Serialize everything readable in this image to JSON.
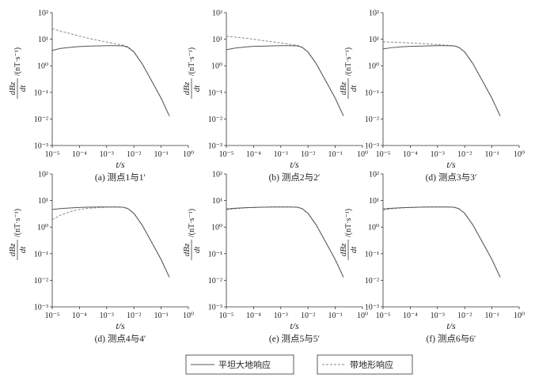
{
  "legend": {
    "solid_label": "平坦大地响应",
    "dashed_label": "带地形响应"
  },
  "styles": {
    "solid_color": "#555555",
    "dashed_color": "#888888"
  },
  "chart_data": [
    {
      "type": "line",
      "caption": "(a) 测点1与1′",
      "xlabel": "t/s",
      "ylabel_numerator": "dBz",
      "ylabel_denominator": "dt",
      "ylabel_unit": "/(nT·s⁻¹)",
      "xscale": "log",
      "yscale": "log",
      "xlim": [
        1e-05,
        1
      ],
      "ylim": [
        0.001,
        100
      ],
      "x_ticks": [
        "10⁻⁵",
        "10⁻⁴",
        "10⁻³",
        "10⁻²",
        "10⁻¹",
        "10⁰"
      ],
      "y_ticks": [
        "10⁻³",
        "10⁻²",
        "10⁻¹",
        "10⁰",
        "10¹",
        "10²"
      ],
      "series": [
        {
          "name": "平坦大地响应",
          "style": "solid",
          "x": [
            1e-05,
            2e-05,
            5e-05,
            0.0001,
            0.0002,
            0.0005,
            0.001,
            0.002,
            0.004,
            0.006,
            0.01,
            0.02,
            0.05,
            0.1,
            0.2
          ],
          "y": [
            3.8,
            4.5,
            5.0,
            5.3,
            5.5,
            5.6,
            5.7,
            5.7,
            5.6,
            5.0,
            3.3,
            1.2,
            0.22,
            0.06,
            0.013
          ]
        },
        {
          "name": "带地形响应",
          "style": "dashed",
          "x": [
            1e-05,
            2e-05,
            5e-05,
            0.0001,
            0.0002,
            0.0005,
            0.001,
            0.002,
            0.004,
            0.006,
            0.01,
            0.02,
            0.05,
            0.1,
            0.2
          ],
          "y": [
            25,
            20,
            16,
            13,
            11,
            9,
            7.8,
            6.8,
            6.0,
            5.2,
            3.4,
            1.2,
            0.22,
            0.06,
            0.013
          ]
        }
      ]
    },
    {
      "type": "line",
      "caption": "(b) 测点2与2′",
      "xlabel": "t/s",
      "ylabel_numerator": "dBz",
      "ylabel_denominator": "dt",
      "ylabel_unit": "/(nT·s⁻¹)",
      "xscale": "log",
      "yscale": "log",
      "xlim": [
        1e-05,
        1
      ],
      "ylim": [
        0.001,
        100
      ],
      "x_ticks": [
        "10⁻⁵",
        "10⁻⁴",
        "10⁻³",
        "10⁻²",
        "10⁻¹",
        "10⁰"
      ],
      "y_ticks": [
        "10⁻³",
        "10⁻²",
        "10⁻¹",
        "10⁰",
        "10¹",
        "10²"
      ],
      "series": [
        {
          "name": "平坦大地响应",
          "style": "solid",
          "x": [
            1e-05,
            2e-05,
            5e-05,
            0.0001,
            0.0002,
            0.0005,
            0.001,
            0.002,
            0.004,
            0.006,
            0.01,
            0.02,
            0.05,
            0.1,
            0.2
          ],
          "y": [
            4.0,
            4.6,
            5.1,
            5.4,
            5.5,
            5.6,
            5.7,
            5.7,
            5.6,
            5.0,
            3.3,
            1.2,
            0.22,
            0.06,
            0.013
          ]
        },
        {
          "name": "带地形响应",
          "style": "dashed",
          "x": [
            1e-05,
            2e-05,
            5e-05,
            0.0001,
            0.0002,
            0.0005,
            0.001,
            0.002,
            0.004,
            0.006,
            0.01,
            0.02,
            0.05,
            0.1,
            0.2
          ],
          "y": [
            13,
            12,
            11,
            10,
            9,
            8,
            7.2,
            6.5,
            5.9,
            5.1,
            3.3,
            1.2,
            0.22,
            0.06,
            0.013
          ]
        }
      ]
    },
    {
      "type": "line",
      "caption": "(d) 测点3与3′",
      "xlabel": "t/s",
      "ylabel_numerator": "dBz",
      "ylabel_denominator": "dt",
      "ylabel_unit": "/(nT·s⁻¹)",
      "xscale": "log",
      "yscale": "log",
      "xlim": [
        1e-05,
        1
      ],
      "ylim": [
        0.001,
        100
      ],
      "x_ticks": [
        "10⁻⁵",
        "10⁻⁴",
        "10⁻³",
        "10⁻²",
        "10⁻¹",
        "10⁰"
      ],
      "y_ticks": [
        "10⁻³",
        "10⁻²",
        "10⁻¹",
        "10⁰",
        "10¹",
        "10²"
      ],
      "series": [
        {
          "name": "平坦大地响应",
          "style": "solid",
          "x": [
            1e-05,
            2e-05,
            5e-05,
            0.0001,
            0.0002,
            0.0005,
            0.001,
            0.002,
            0.004,
            0.006,
            0.01,
            0.02,
            0.05,
            0.1,
            0.2
          ],
          "y": [
            4.3,
            4.8,
            5.2,
            5.4,
            5.5,
            5.6,
            5.7,
            5.7,
            5.6,
            5.0,
            3.3,
            1.2,
            0.22,
            0.06,
            0.013
          ]
        },
        {
          "name": "带地形响应",
          "style": "dashed",
          "x": [
            1e-05,
            2e-05,
            5e-05,
            0.0001,
            0.0002,
            0.0005,
            0.001,
            0.002,
            0.004,
            0.006,
            0.01,
            0.02,
            0.05,
            0.1,
            0.2
          ],
          "y": [
            8.0,
            7.8,
            7.5,
            7.2,
            7.0,
            6.6,
            6.3,
            6.0,
            5.7,
            5.0,
            3.3,
            1.2,
            0.22,
            0.06,
            0.013
          ]
        }
      ]
    },
    {
      "type": "line",
      "caption": "(d) 测点4与4′",
      "xlabel": "t/s",
      "ylabel_numerator": "dBz",
      "ylabel_denominator": "dt",
      "ylabel_unit": "/(nT·s⁻¹)",
      "xscale": "log",
      "yscale": "log",
      "xlim": [
        1e-05,
        1
      ],
      "ylim": [
        0.001,
        100
      ],
      "x_ticks": [
        "10⁻⁵",
        "10⁻⁴",
        "10⁻³",
        "10⁻²",
        "10⁻¹",
        "10⁰"
      ],
      "y_ticks": [
        "10⁻³",
        "10⁻²",
        "10⁻¹",
        "10⁰",
        "10¹",
        "10²"
      ],
      "series": [
        {
          "name": "平坦大地响应",
          "style": "solid",
          "x": [
            1e-05,
            2e-05,
            5e-05,
            0.0001,
            0.0002,
            0.0005,
            0.001,
            0.002,
            0.004,
            0.006,
            0.01,
            0.02,
            0.05,
            0.1,
            0.2
          ],
          "y": [
            4.6,
            5.0,
            5.3,
            5.5,
            5.6,
            5.7,
            5.7,
            5.7,
            5.6,
            5.0,
            3.3,
            1.2,
            0.22,
            0.06,
            0.013
          ]
        },
        {
          "name": "带地形响应",
          "style": "dashed",
          "x": [
            1e-05,
            2e-05,
            5e-05,
            0.0001,
            0.0002,
            0.0005,
            0.001,
            0.002,
            0.004,
            0.006,
            0.01,
            0.02,
            0.05,
            0.1,
            0.2
          ],
          "y": [
            1.9,
            2.8,
            3.9,
            4.6,
            5.1,
            5.4,
            5.6,
            5.7,
            5.6,
            5.0,
            3.3,
            1.2,
            0.22,
            0.06,
            0.013
          ]
        }
      ]
    },
    {
      "type": "line",
      "caption": "(e) 测点5与5′",
      "xlabel": "t/s",
      "ylabel_numerator": "dBz",
      "ylabel_denominator": "dt",
      "ylabel_unit": "/(nT·s⁻¹)",
      "xscale": "log",
      "yscale": "log",
      "xlim": [
        1e-05,
        1
      ],
      "ylim": [
        0.001,
        100
      ],
      "x_ticks": [
        "10⁻⁵",
        "10⁻⁴",
        "10⁻³",
        "10⁻²",
        "10⁻¹",
        "10⁰"
      ],
      "y_ticks": [
        "10⁻³",
        "10⁻²",
        "10⁻¹",
        "10⁰",
        "10¹",
        "10²"
      ],
      "series": [
        {
          "name": "平坦大地响应",
          "style": "solid",
          "x": [
            1e-05,
            2e-05,
            5e-05,
            0.0001,
            0.0002,
            0.0005,
            0.001,
            0.002,
            0.004,
            0.006,
            0.01,
            0.02,
            0.05,
            0.1,
            0.2
          ],
          "y": [
            4.8,
            5.1,
            5.4,
            5.5,
            5.6,
            5.7,
            5.7,
            5.7,
            5.6,
            5.0,
            3.3,
            1.2,
            0.22,
            0.06,
            0.013
          ]
        },
        {
          "name": "带地形响应",
          "style": "dashed",
          "x": [
            1e-05,
            2e-05,
            5e-05,
            0.0001,
            0.0002,
            0.0005,
            0.001,
            0.002,
            0.004,
            0.006,
            0.01,
            0.02,
            0.05,
            0.1,
            0.2
          ],
          "y": [
            4.5,
            4.9,
            5.3,
            5.5,
            5.6,
            5.7,
            5.7,
            5.7,
            5.6,
            5.0,
            3.3,
            1.2,
            0.22,
            0.06,
            0.013
          ]
        }
      ]
    },
    {
      "type": "line",
      "caption": "(f) 测点6与6′",
      "xlabel": "t/s",
      "ylabel_numerator": "dBz",
      "ylabel_denominator": "dt",
      "ylabel_unit": "/(nT·s⁻¹)",
      "xscale": "log",
      "yscale": "log",
      "xlim": [
        1e-05,
        1
      ],
      "ylim": [
        0.001,
        100
      ],
      "x_ticks": [
        "10⁻⁵",
        "10⁻⁴",
        "10⁻³",
        "10⁻²",
        "10⁻¹",
        "10⁰"
      ],
      "y_ticks": [
        "10⁻³",
        "10⁻²",
        "10⁻¹",
        "10⁰",
        "10¹",
        "10²"
      ],
      "series": [
        {
          "name": "平坦大地响应",
          "style": "solid",
          "x": [
            1e-05,
            2e-05,
            5e-05,
            0.0001,
            0.0002,
            0.0005,
            0.001,
            0.002,
            0.004,
            0.006,
            0.01,
            0.02,
            0.05,
            0.1,
            0.2
          ],
          "y": [
            4.8,
            5.1,
            5.4,
            5.5,
            5.6,
            5.7,
            5.7,
            5.7,
            5.6,
            5.0,
            3.3,
            1.2,
            0.22,
            0.06,
            0.013
          ]
        },
        {
          "name": "带地形响应",
          "style": "dashed",
          "x": [
            1e-05,
            2e-05,
            5e-05,
            0.0001,
            0.0002,
            0.0005,
            0.001,
            0.002,
            0.004,
            0.006,
            0.01,
            0.02,
            0.05,
            0.1,
            0.2
          ],
          "y": [
            4.4,
            4.9,
            5.3,
            5.5,
            5.6,
            5.7,
            5.7,
            5.7,
            5.6,
            5.0,
            3.3,
            1.2,
            0.22,
            0.06,
            0.013
          ]
        }
      ]
    }
  ]
}
